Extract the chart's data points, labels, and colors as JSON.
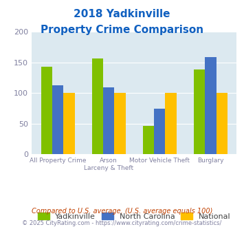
{
  "title_line1": "2018 Yadkinville",
  "title_line2": "Property Crime Comparison",
  "cat_labels_line1": [
    "All Property Crime",
    "Arson",
    "Motor Vehicle Theft",
    "Burglary"
  ],
  "cat_labels_line2": [
    "",
    "Larceny & Theft",
    "",
    ""
  ],
  "yadkinville": [
    143,
    157,
    47,
    138
  ],
  "north_carolina": [
    113,
    109,
    74,
    159
  ],
  "national": [
    100,
    100,
    100,
    100
  ],
  "color_yadkinville": "#80c000",
  "color_nc": "#4472c4",
  "color_national": "#ffc000",
  "ylim": [
    0,
    200
  ],
  "yticks": [
    0,
    50,
    100,
    150,
    200
  ],
  "background_color": "#dce9f0",
  "title_color": "#1060c0",
  "axis_label_color": "#8080a0",
  "footnote1": "Compared to U.S. average. (U.S. average equals 100)",
  "footnote2": "© 2025 CityRating.com - https://www.cityrating.com/crime-statistics/",
  "footnote1_color": "#c04000",
  "footnote2_color": "#8080a0"
}
